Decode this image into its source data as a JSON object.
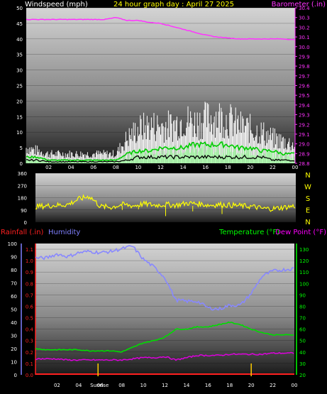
{
  "colors": {
    "white": "#ffffff",
    "yellow": "#ffff00",
    "magenta": "#ff33ff",
    "green": "#00ff00",
    "red": "#ff2020",
    "blue": "#8080ff",
    "dewpoint": "#ff00ff",
    "wind_gust": "#ffffff",
    "wind_avg": "#00cc00",
    "wind_low": "#aaffaa",
    "humidity": "#8888ff",
    "temperature": "#00dd00",
    "dewline": "#dd00dd",
    "winddir": "#ffff00",
    "sunmark": "#ffcc00"
  },
  "header": {
    "left": "Windspeed (mph)",
    "center": "24 hour graph day : April 27 2025",
    "right": "Barometer (.in)"
  },
  "compass": [
    "N",
    "W",
    "S",
    "E",
    "N"
  ],
  "lower_header": {
    "rain": "Rainfall (.in)",
    "humidity": "Humidity",
    "temperature": "Temperature (°F)",
    "dewpoint": "Dew Point (°F)"
  },
  "x_ticks": [
    "02",
    "04",
    "06",
    "08",
    "10",
    "12",
    "14",
    "16",
    "18",
    "20",
    "22",
    "00"
  ],
  "sunrise_label": "Sunrise",
  "chart_data": [
    {
      "type": "line",
      "title": "24 hour graph day : April 27 2025",
      "x": [
        0,
        1,
        2,
        3,
        4,
        5,
        6,
        7,
        8,
        9,
        10,
        11,
        12,
        13,
        14,
        15,
        16,
        17,
        18,
        19,
        20,
        21,
        22,
        23,
        24
      ],
      "left_axis": {
        "label": "Windspeed (mph)",
        "ticks": [
          0,
          5,
          10,
          15,
          20,
          25,
          30,
          35,
          40,
          45,
          50
        ],
        "ylim": [
          0,
          50
        ]
      },
      "right_axis": {
        "label": "Barometer (.in)",
        "ticks": [
          28.8,
          28.9,
          29.0,
          29.1,
          29.2,
          29.3,
          29.4,
          29.5,
          29.6,
          29.7,
          29.8,
          29.9,
          30.0,
          30.1,
          30.2,
          30.3,
          30.4
        ],
        "ylim": [
          28.8,
          30.4
        ]
      },
      "series": [
        {
          "name": "Barometer (.in)",
          "axis": "right",
          "values": [
            30.28,
            30.28,
            30.28,
            30.28,
            30.28,
            30.28,
            30.28,
            30.28,
            30.3,
            30.27,
            30.27,
            30.25,
            30.24,
            30.21,
            30.18,
            30.15,
            30.12,
            30.1,
            30.09,
            30.08,
            30.08,
            30.08,
            30.08,
            30.08,
            30.07
          ]
        },
        {
          "axis": "left",
          "values": [
            5,
            4,
            3,
            3,
            3,
            3,
            3,
            3,
            3,
            8,
            11,
            12,
            12,
            12,
            14,
            13,
            14,
            15,
            14,
            12,
            11,
            10,
            8,
            7,
            6
          ]
        },
        {
          "axis": "left",
          "values": [
            2,
            2,
            1,
            1,
            1,
            1,
            1,
            1,
            1,
            3,
            4,
            4,
            5,
            5,
            5,
            6,
            6,
            6,
            6,
            5,
            5,
            4,
            4,
            3,
            3
          ]
        },
        {
          "axis": "left",
          "values": [
            1,
            1,
            0.5,
            0.5,
            0.5,
            0.5,
            0.5,
            0.5,
            0.5,
            1,
            2,
            2,
            2,
            2,
            2,
            2,
            2,
            2,
            2,
            2,
            2,
            2,
            1,
            1,
            1
          ]
        }
      ]
    },
    {
      "type": "line",
      "left_axis": {
        "ticks": [
          0,
          90,
          180,
          270,
          360
        ],
        "ylim": [
          0,
          360
        ]
      },
      "series": [
        {
          "values": [
            115,
            120,
            125,
            130,
            170,
            190,
            115,
            110,
            130,
            120,
            135,
            125,
            130,
            125,
            140,
            135,
            125,
            130,
            125,
            120,
            115,
            100,
            100,
            110,
            120
          ]
        }
      ]
    },
    {
      "type": "line",
      "left_axis_humidity": {
        "label": "Humidity",
        "ticks": [
          0,
          10,
          20,
          30,
          40,
          50,
          60,
          70,
          80,
          90,
          100
        ],
        "ylim": [
          0,
          100
        ]
      },
      "left_axis_rain": {
        "label": "Rainfall (.in)",
        "ticks": [
          0,
          0.1,
          0.2,
          0.3,
          0.4,
          0.5,
          0.6,
          0.7,
          0.8,
          0.9,
          1.0,
          1.1
        ],
        "ylim": [
          0,
          1.15
        ]
      },
      "right_axis": {
        "label": "Temperature (°F) / Dew Point (°F)",
        "ticks": [
          20,
          30,
          40,
          50,
          60,
          70,
          80,
          90,
          100,
          110,
          120,
          130
        ],
        "ylim": [
          20,
          135
        ]
      },
      "series": [
        {
          "name": "Humidity",
          "axis": "humidity",
          "values": [
            89,
            89,
            92,
            90,
            93,
            94,
            93,
            94,
            96,
            98,
            88,
            82,
            74,
            57,
            56,
            56,
            51,
            50,
            53,
            53,
            62,
            75,
            79,
            80,
            81
          ]
        },
        {
          "name": "Temperature (°F)",
          "axis": "temp",
          "values": [
            43,
            42,
            42,
            42,
            42,
            41,
            41,
            41,
            40,
            44,
            48,
            50,
            53,
            60,
            60,
            62,
            62,
            64,
            66,
            64,
            60,
            57,
            55,
            55,
            55
          ]
        },
        {
          "name": "Dew Point (°F)",
          "axis": "temp",
          "values": [
            34,
            34,
            34,
            33,
            33,
            33,
            33,
            33,
            33,
            34,
            35,
            35,
            36,
            33,
            35,
            37,
            37,
            37,
            38,
            38,
            38,
            38,
            39,
            39,
            39
          ]
        },
        {
          "name": "Rainfall (.in)",
          "axis": "rain",
          "values": [
            0,
            0,
            0,
            0,
            0,
            0,
            0,
            0,
            0,
            0,
            0,
            0,
            0,
            0,
            0,
            0,
            0,
            0,
            0,
            0,
            0,
            0,
            0,
            0,
            0
          ]
        }
      ],
      "markers": {
        "sunrise_hour": 5.8,
        "sunset_hour": 20.0
      }
    }
  ]
}
